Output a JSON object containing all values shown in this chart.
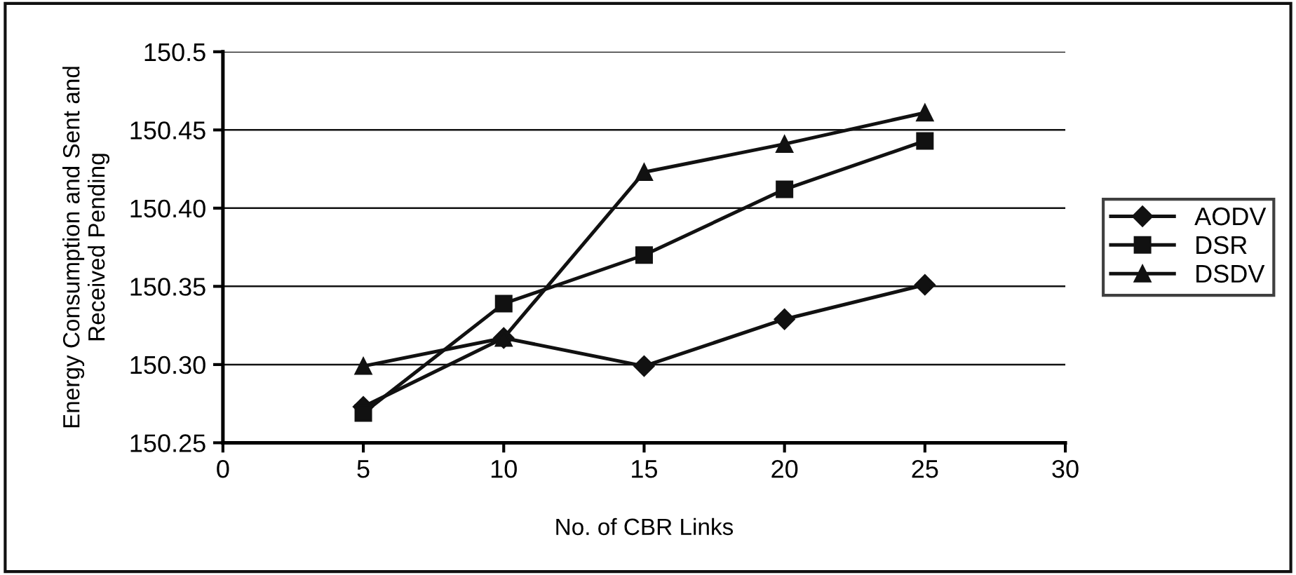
{
  "chart_data": {
    "type": "line",
    "xlabel": "No. of CBR Links",
    "ylabel": "Energy Consumption and Sent and\nReceived Pending",
    "x": [
      5,
      10,
      15,
      20,
      25
    ],
    "series": [
      {
        "name": "AODV",
        "color": "#111111",
        "marker": "diamond",
        "values": [
          150.273,
          150.317,
          150.299,
          150.329,
          150.351
        ]
      },
      {
        "name": "DSR",
        "color": "#111111",
        "marker": "square",
        "values": [
          150.269,
          150.339,
          150.37,
          150.412,
          150.443
        ]
      },
      {
        "name": "DSDV",
        "color": "#111111",
        "marker": "triangle",
        "values": [
          150.299,
          150.317,
          150.423,
          150.441,
          150.461
        ]
      }
    ],
    "xlim": [
      0,
      30
    ],
    "xticks": [
      0,
      5,
      10,
      15,
      20,
      25,
      30
    ],
    "ylim": [
      150.25,
      150.5
    ],
    "yticks": [
      {
        "value": 150.25,
        "label": "150.25"
      },
      {
        "value": 150.3,
        "label": "150.30"
      },
      {
        "value": 150.35,
        "label": "150.35"
      },
      {
        "value": 150.4,
        "label": "150.40"
      },
      {
        "value": 150.45,
        "label": "150.45"
      },
      {
        "value": 150.5,
        "label": "150.5"
      }
    ],
    "grid": "y",
    "legend": "right",
    "line_style": "solid"
  }
}
